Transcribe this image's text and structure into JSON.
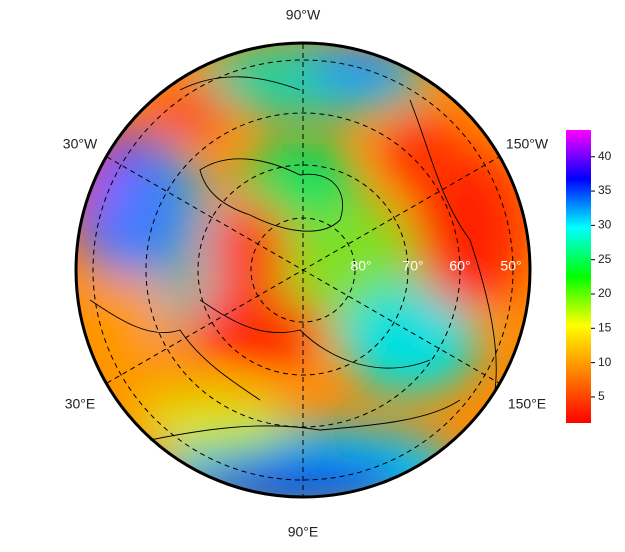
{
  "map": {
    "longitude_labels": [
      "90°W",
      "30°W",
      "150°W",
      "30°E",
      "150°E",
      "90°E"
    ],
    "latitude_labels": [
      "80°",
      "70°",
      "60°",
      "50°"
    ],
    "colorbar": {
      "lim": [
        1.2,
        43.9
      ],
      "ticks": [
        5,
        10,
        15,
        20,
        25,
        30,
        35,
        40
      ],
      "colors": [
        "#ff0000",
        "#ff7f00",
        "#ffff00",
        "#00ff00",
        "#00ffff",
        "#0000ff",
        "#ff00ff"
      ]
    }
  }
}
